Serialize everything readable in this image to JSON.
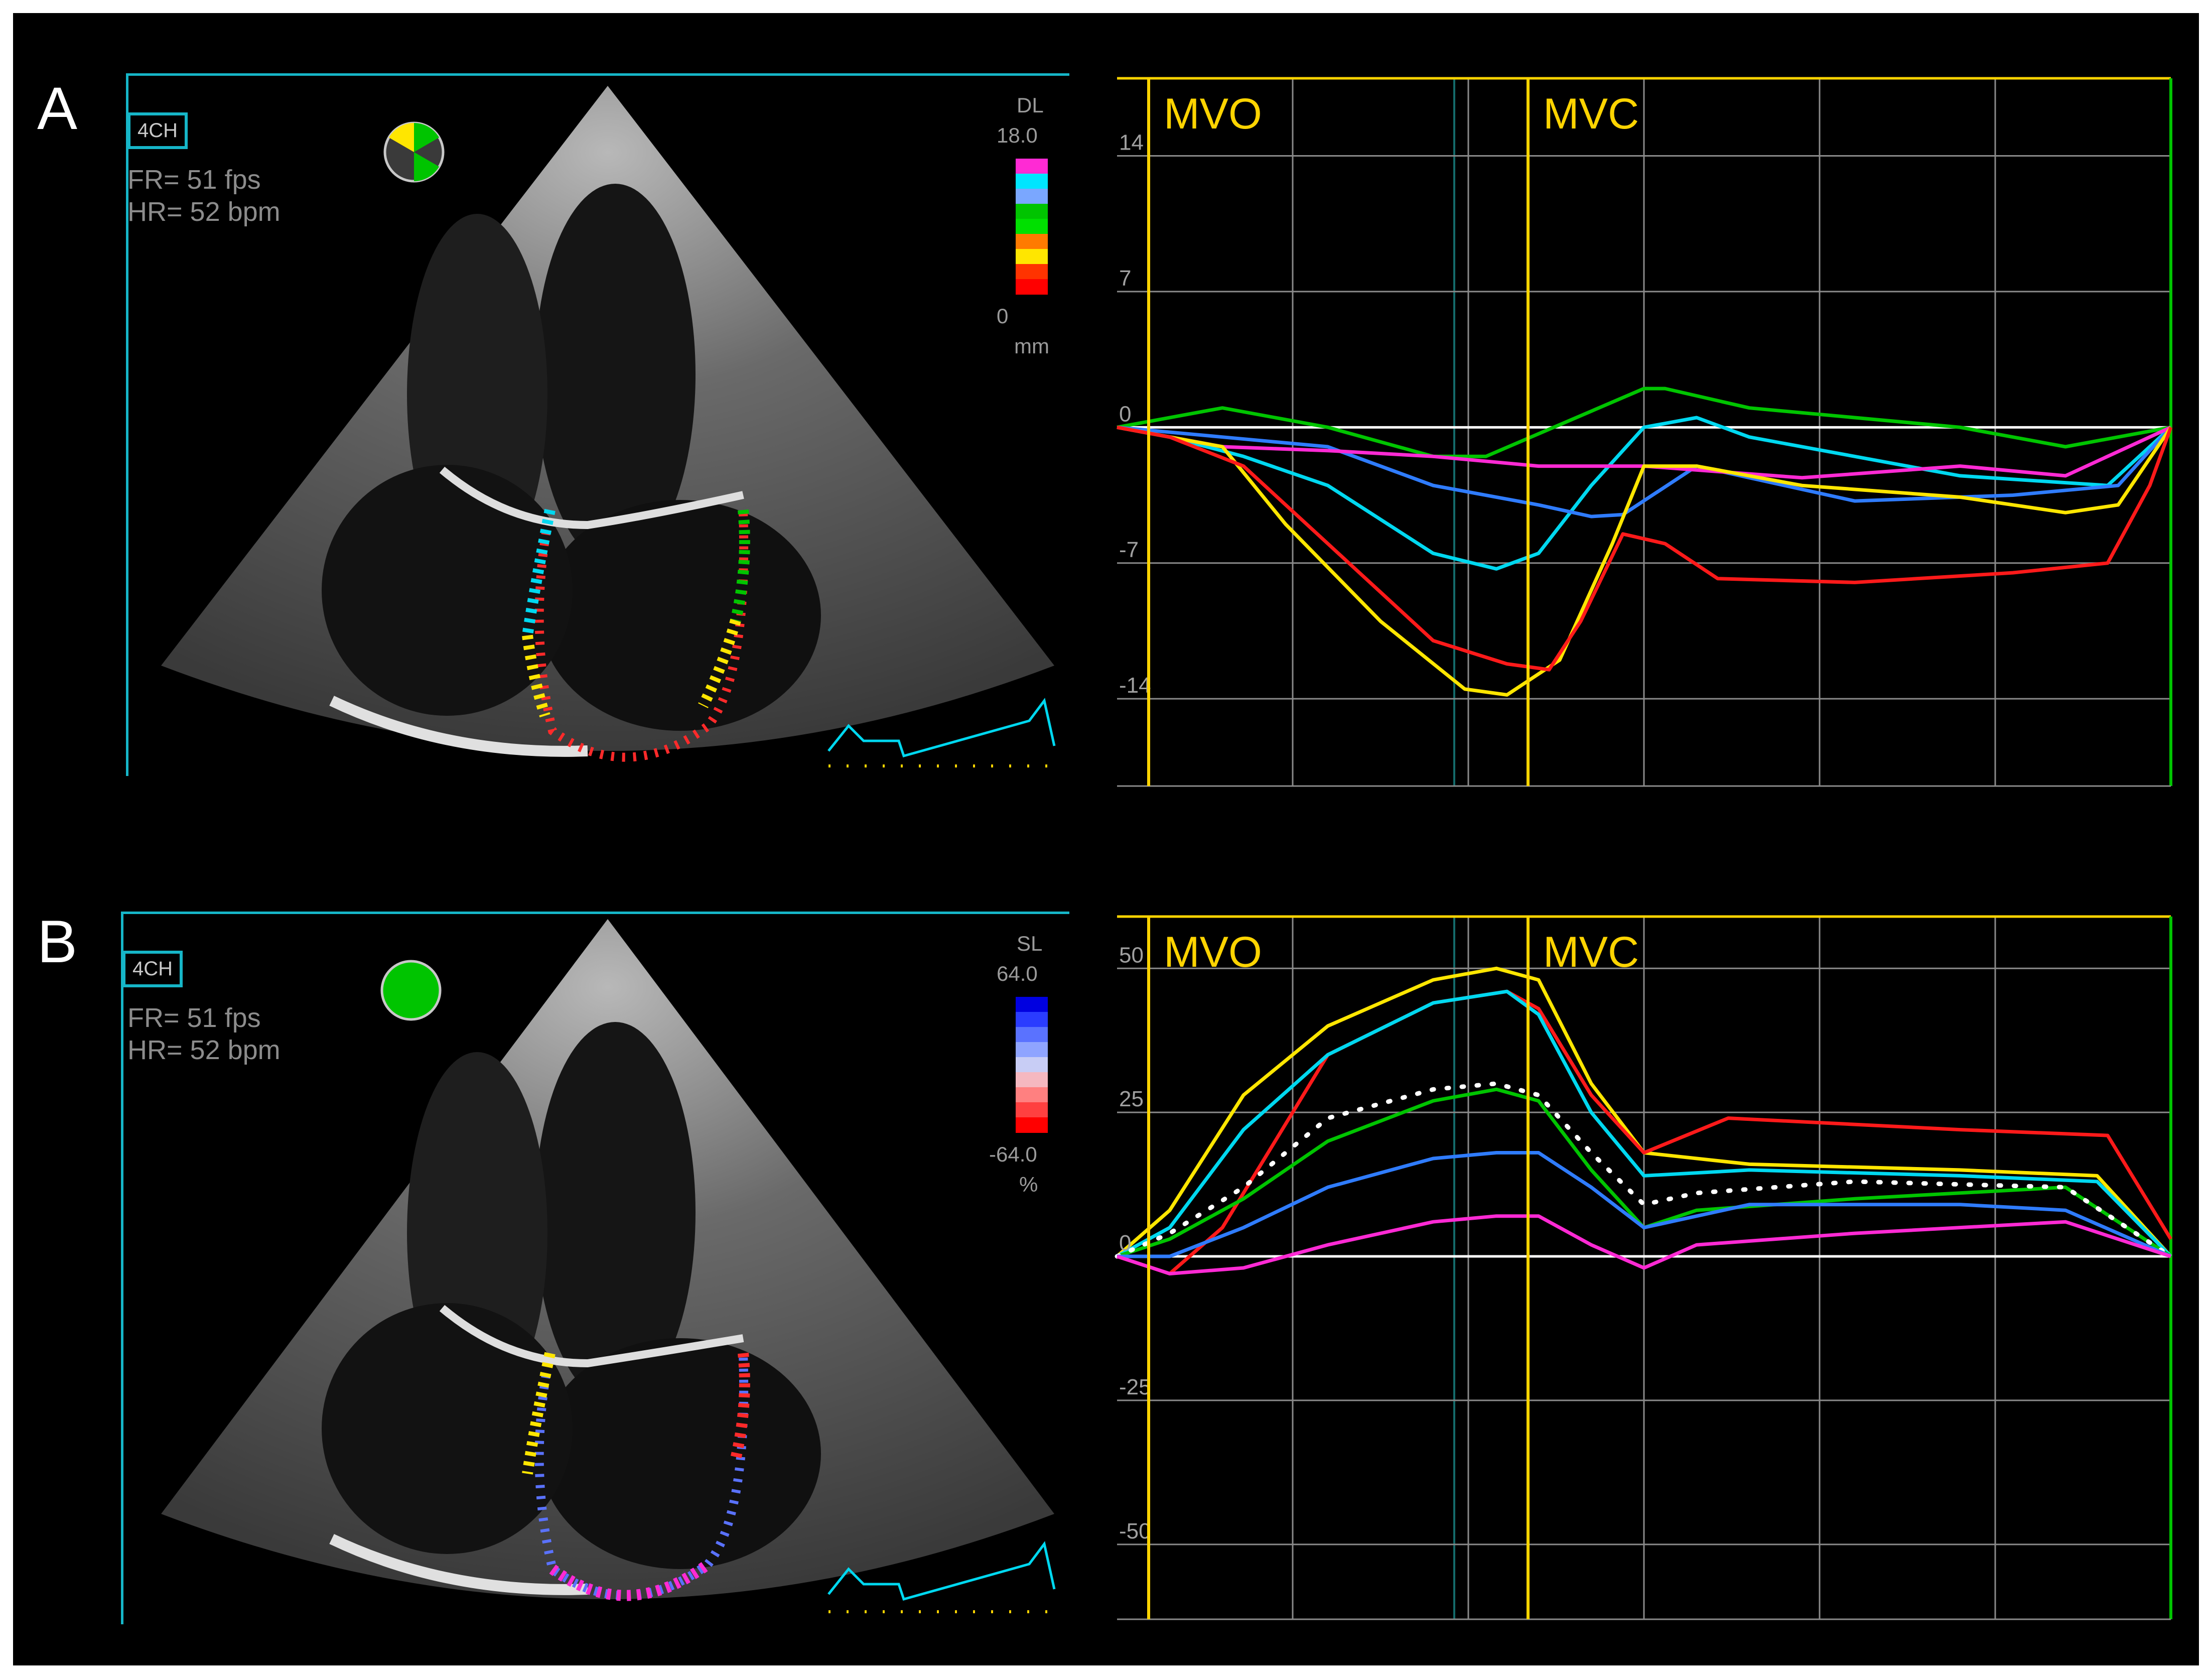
{
  "panels": [
    {
      "id": "A",
      "label": "A",
      "view_tag": "4CH",
      "frame_rate": "FR= 51 fps",
      "heart_rate": "HR= 52 bpm",
      "scale": {
        "name": "DL",
        "top": "18.0",
        "bottom": "0",
        "unit": "mm",
        "colors": [
          "#ff2ad4",
          "#00e5ff",
          "#7aa7ff",
          "#00c400",
          "#00e000",
          "#ff7a00",
          "#ffe600",
          "#ff3300",
          "#ff0000"
        ]
      },
      "events": {
        "mvo": "MVO",
        "mvc": "MVC"
      },
      "chart_data": {
        "type": "line",
        "ytick_labels": [
          "14",
          "7",
          "0",
          "-7",
          "-14"
        ],
        "ytick_values": [
          14,
          7,
          0,
          -7,
          -14
        ],
        "ylim": [
          -18.5,
          18
        ],
        "xlim": [
          0,
          1
        ],
        "event_x": {
          "mvo": 0.03,
          "mvc": 0.39
        },
        "series": [
          {
            "color": "#00c400",
            "x": [
              0,
              0.1,
              0.2,
              0.3,
              0.35,
              0.5,
              0.52,
              0.6,
              0.8,
              0.9,
              1
            ],
            "y": [
              0,
              1,
              0,
              -1.5,
              -1.5,
              2,
              2,
              1,
              0,
              -1,
              0
            ]
          },
          {
            "color": "#00d8f0",
            "x": [
              0,
              0.05,
              0.12,
              0.2,
              0.3,
              0.36,
              0.4,
              0.45,
              0.5,
              0.55,
              0.6,
              0.8,
              0.94,
              1
            ],
            "y": [
              0,
              -0.5,
              -1.5,
              -3,
              -6.5,
              -7.3,
              -6.5,
              -3,
              0,
              0.5,
              -0.5,
              -2.5,
              -3,
              0
            ]
          },
          {
            "color": "#2f7cff",
            "x": [
              0,
              0.1,
              0.2,
              0.3,
              0.4,
              0.45,
              0.48,
              0.55,
              0.7,
              0.85,
              0.95,
              1
            ],
            "y": [
              0,
              -0.5,
              -1,
              -3,
              -4,
              -4.6,
              -4.5,
              -2,
              -3.8,
              -3.5,
              -3,
              0
            ]
          },
          {
            "color": "#ff2ad4",
            "x": [
              0,
              0.1,
              0.2,
              0.3,
              0.4,
              0.5,
              0.65,
              0.8,
              0.9,
              1
            ],
            "y": [
              0,
              -1,
              -1.2,
              -1.5,
              -2,
              -2,
              -2.6,
              -2,
              -2.5,
              0
            ]
          },
          {
            "color": "#ffe600",
            "x": [
              0,
              0.1,
              0.16,
              0.25,
              0.33,
              0.37,
              0.42,
              0.47,
              0.5,
              0.55,
              0.65,
              0.8,
              0.9,
              0.95,
              1
            ],
            "y": [
              0,
              -1,
              -5,
              -10,
              -13.5,
              -13.8,
              -12,
              -6,
              -2,
              -2,
              -3,
              -3.6,
              -4.4,
              -4,
              0
            ]
          },
          {
            "color": "#ff1a1a",
            "x": [
              0,
              0.05,
              0.12,
              0.2,
              0.3,
              0.37,
              0.41,
              0.44,
              0.48,
              0.52,
              0.57,
              0.7,
              0.85,
              0.94,
              0.98,
              1
            ],
            "y": [
              0,
              -0.5,
              -2,
              -6,
              -11,
              -12.2,
              -12.5,
              -10,
              -5.5,
              -6,
              -7.8,
              -8,
              -7.5,
              -7,
              -3,
              0
            ]
          }
        ]
      }
    },
    {
      "id": "B",
      "label": "B",
      "view_tag": "4CH",
      "frame_rate": "FR= 51 fps",
      "heart_rate": "HR= 52 bpm",
      "scale": {
        "name": "SL",
        "top": "64.0",
        "bottom": "-64.0",
        "unit": "%",
        "colors": [
          "#0000e0",
          "#2a3cff",
          "#5a72ff",
          "#8fa4ff",
          "#c8cdf5",
          "#f5b8c0",
          "#ff8080",
          "#ff4040",
          "#ff0000"
        ]
      },
      "events": {
        "mvo": "MVO",
        "mvc": "MVC"
      },
      "chart_data": {
        "type": "line",
        "ytick_labels": [
          "50",
          "25",
          "0",
          "-25",
          "-50"
        ],
        "ytick_values": [
          50,
          25,
          0,
          -25,
          -50
        ],
        "ylim": [
          -63,
          59
        ],
        "xlim": [
          0,
          1
        ],
        "event_x": {
          "mvo": 0.03,
          "mvc": 0.39
        },
        "series": [
          {
            "color": "#ffe600",
            "x": [
              0,
              0.05,
              0.12,
              0.2,
              0.3,
              0.36,
              0.4,
              0.45,
              0.5,
              0.6,
              0.8,
              0.93,
              1
            ],
            "y": [
              0,
              8,
              28,
              40,
              48,
              50,
              48,
              30,
              18,
              16,
              15,
              14,
              0
            ]
          },
          {
            "color": "#ff1a1a",
            "x": [
              0,
              0.05,
              0.1,
              0.2,
              0.3,
              0.37,
              0.4,
              0.45,
              0.5,
              0.58,
              0.8,
              0.94,
              1
            ],
            "y": [
              0,
              -3,
              5,
              35,
              44,
              46,
              43,
              28,
              18,
              24,
              22,
              21,
              3
            ]
          },
          {
            "color": "#00d8f0",
            "x": [
              0,
              0.05,
              0.12,
              0.2,
              0.3,
              0.37,
              0.4,
              0.45,
              0.5,
              0.6,
              0.8,
              0.93,
              1
            ],
            "y": [
              0,
              5,
              22,
              35,
              44,
              46,
              42,
              25,
              14,
              15,
              14,
              13,
              0
            ]
          },
          {
            "color": "#00c400",
            "x": [
              0,
              0.05,
              0.12,
              0.2,
              0.3,
              0.36,
              0.4,
              0.45,
              0.5,
              0.55,
              0.7,
              0.9,
              1
            ],
            "y": [
              0,
              3,
              10,
              20,
              27,
              29,
              27,
              15,
              5,
              8,
              10,
              12,
              0
            ]
          },
          {
            "color": "#ffffff",
            "dotted": true,
            "x": [
              0,
              0.05,
              0.12,
              0.2,
              0.3,
              0.36,
              0.4,
              0.45,
              0.5,
              0.55,
              0.7,
              0.9,
              1
            ],
            "y": [
              0,
              4,
              12,
              24,
              29,
              30,
              28,
              18,
              9,
              11,
              13,
              12,
              0
            ]
          },
          {
            "color": "#2f7cff",
            "x": [
              0,
              0.05,
              0.12,
              0.2,
              0.3,
              0.36,
              0.4,
              0.45,
              0.5,
              0.6,
              0.8,
              0.9,
              1
            ],
            "y": [
              0,
              0,
              5,
              12,
              17,
              18,
              18,
              12,
              5,
              9,
              9,
              8,
              0
            ]
          },
          {
            "color": "#ff2ad4",
            "x": [
              0,
              0.05,
              0.12,
              0.2,
              0.3,
              0.36,
              0.4,
              0.45,
              0.5,
              0.55,
              0.7,
              0.9,
              1
            ],
            "y": [
              0,
              -3,
              -2,
              2,
              6,
              7,
              7,
              2,
              -2,
              2,
              4,
              6,
              0
            ]
          }
        ]
      }
    }
  ]
}
